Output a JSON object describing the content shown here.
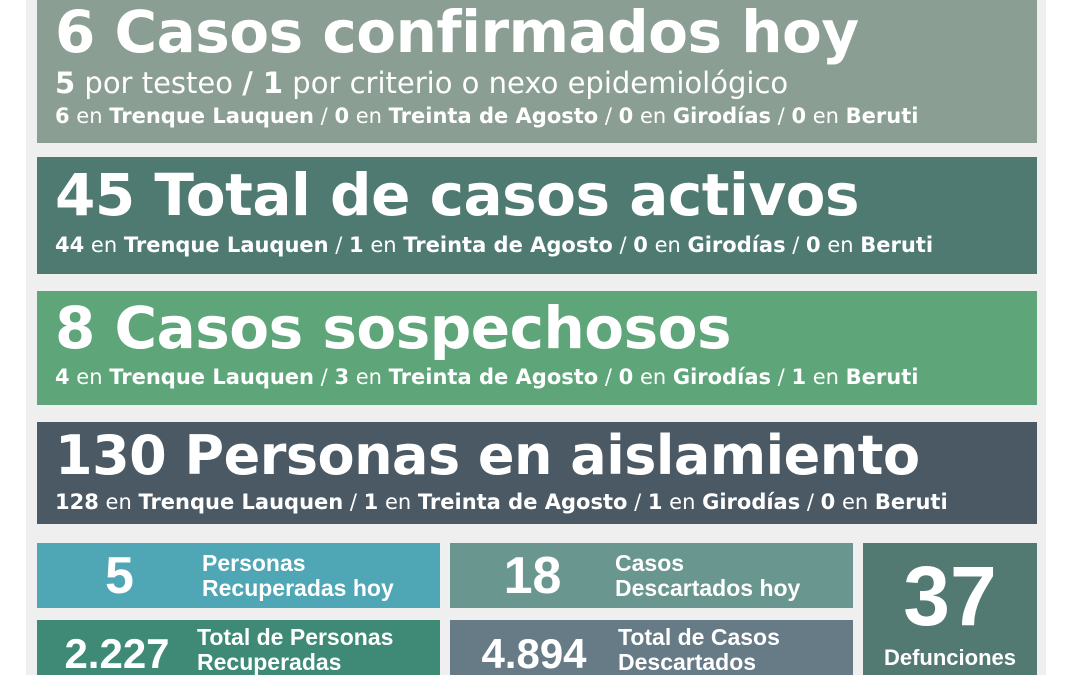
{
  "colors": {
    "confirmados": "#8a9e93",
    "activos": "#4f7a72",
    "sospechosos": "#5ea679",
    "aislamiento": "#4a5963",
    "recuperados_hoy": "#4fa6b5",
    "descartados_hoy": "#6a9690",
    "defunciones": "#537a72",
    "total_recuperados": "#3f8a76",
    "total_descartados": "#667b86"
  },
  "confirmados": {
    "title": "6 Casos confirmados hoy",
    "line2": [
      {
        "n": "5",
        "t": " por testeo "
      },
      {
        "n": "/ 1",
        "t": " por criterio o nexo epidemiológico"
      }
    ],
    "breakdown": [
      {
        "n": "6",
        "place": "Trenque Lauquen"
      },
      {
        "n": "0",
        "place": "Treinta de Agosto"
      },
      {
        "n": "0",
        "place": "Girodías"
      },
      {
        "n": "0",
        "place": "Beruti"
      }
    ]
  },
  "activos": {
    "title": "45 Total de casos activos",
    "breakdown": [
      {
        "n": "44",
        "place": "Trenque Lauquen"
      },
      {
        "n": "1",
        "place": "Treinta de Agosto"
      },
      {
        "n": "0",
        "place": "Girodías"
      },
      {
        "n": "0",
        "place": "Beruti"
      }
    ]
  },
  "sospechosos": {
    "title": "8 Casos sospechosos",
    "breakdown": [
      {
        "n": "4",
        "place": "Trenque Lauquen"
      },
      {
        "n": "3",
        "place": "Treinta de Agosto"
      },
      {
        "n": "0",
        "place": "Girodías"
      },
      {
        "n": "1",
        "place": "Beruti"
      }
    ]
  },
  "aislamiento": {
    "title": "130 Personas en aislamiento",
    "breakdown": [
      {
        "n": "128",
        "place": "Trenque Lauquen"
      },
      {
        "n": "1",
        "place": "Treinta de Agosto"
      },
      {
        "n": "1",
        "place": "Girodías"
      },
      {
        "n": "0",
        "place": "Beruti"
      }
    ]
  },
  "en": " en ",
  "sep": " / ",
  "stats": {
    "recuperados_hoy": {
      "value": "5",
      "label1": "Personas",
      "label2": "Recuperadas hoy"
    },
    "descartados_hoy": {
      "value": "18",
      "label1": "Casos",
      "label2": "Descartados hoy"
    },
    "defunciones": {
      "value": "37",
      "label": "Defunciones"
    },
    "total_recuperados": {
      "value": "2.227",
      "label1": "Total de Personas",
      "label2": "Recuperadas"
    },
    "total_descartados": {
      "value": "4.894",
      "label1": "Total de Casos",
      "label2": "Descartados"
    }
  }
}
